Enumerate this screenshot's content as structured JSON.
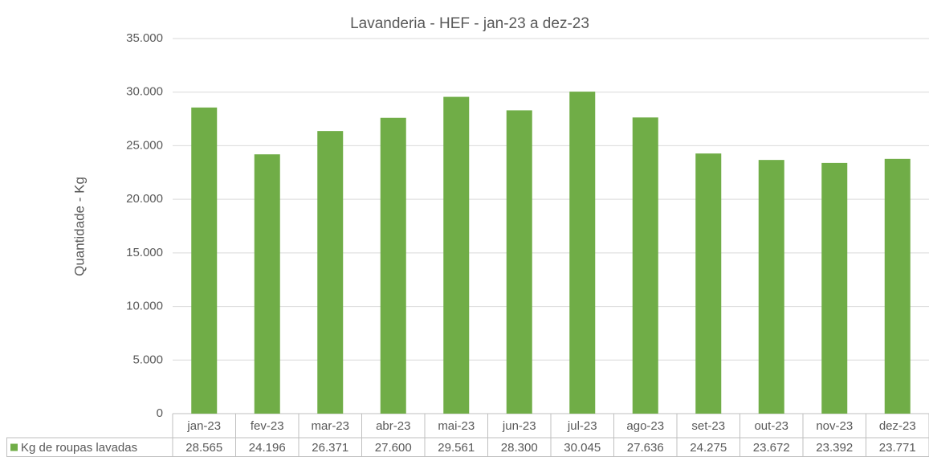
{
  "chart_data": {
    "type": "bar",
    "title": "Lavanderia  - HEF - jan-23 a dez-23",
    "y_label": "Quantidade - Kg",
    "categories": [
      "jan-23",
      "fev-23",
      "mar-23",
      "abr-23",
      "mai-23",
      "jun-23",
      "jul-23",
      "ago-23",
      "set-23",
      "out-23",
      "nov-23",
      "dez-23"
    ],
    "series": [
      {
        "name": "Kg de roupas lavadas",
        "color": "#70ad47",
        "values": [
          28565,
          24196,
          26371,
          27600,
          29561,
          28300,
          30045,
          27636,
          24275,
          23672,
          23392,
          23771
        ],
        "value_labels": [
          "28.565",
          "24.196",
          "26.371",
          "27.600",
          "29.561",
          "28.300",
          "30.045",
          "27.636",
          "24.275",
          "23.672",
          "23.392",
          "23.771"
        ]
      }
    ],
    "ylim": [
      0,
      35000
    ],
    "yticks": [
      0,
      {
        "value": 5000,
        "label": "5.000"
      },
      {
        "value": 10000,
        "label": "10.000"
      },
      {
        "value": 15000,
        "label": "15.000"
      },
      {
        "value": 20000,
        "label": "20.000"
      },
      {
        "value": 25000,
        "label": "25.000"
      },
      {
        "value": 30000,
        "label": "30.000"
      },
      {
        "value": 35000,
        "label": "35.000"
      }
    ],
    "grid": true
  }
}
